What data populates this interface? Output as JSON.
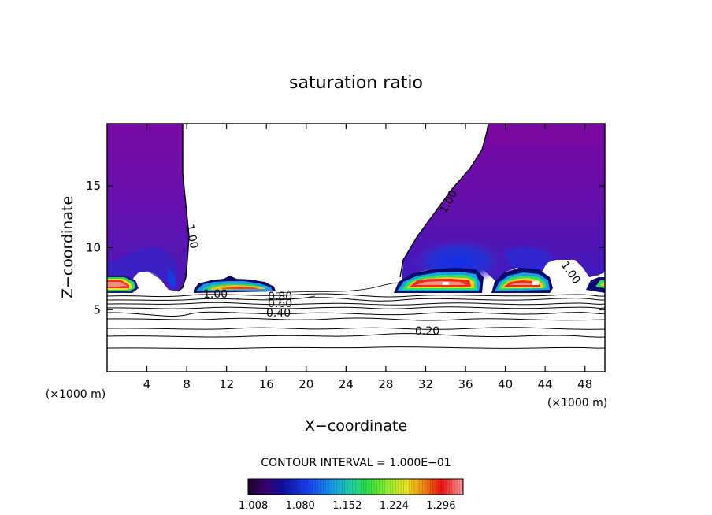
{
  "chart_data": {
    "type": "heatmap",
    "title": "saturation ratio",
    "xlabel": "X−coordinate",
    "ylabel": "Z−coordinate",
    "x_unit_left": "(×1000 m)",
    "x_unit_right": "(×1000 m)",
    "xlim": [
      0,
      50
    ],
    "ylim": [
      0,
      20
    ],
    "xticks": [
      4,
      8,
      12,
      16,
      20,
      24,
      28,
      32,
      36,
      40,
      44,
      48
    ],
    "yticks": [
      5,
      10,
      15
    ],
    "contour_interval_text": "CONTOUR INTERVAL = 1.000E−01",
    "colorbar_ticks": [
      "1.008",
      "1.080",
      "1.152",
      "1.224",
      "1.296"
    ],
    "colorbar_range": [
      1.0,
      1.33
    ],
    "contour_labels": [
      {
        "text": "1.00",
        "x": 7.8,
        "z": 10.7
      },
      {
        "text": "1.00",
        "x": 11.3,
        "z": 6.1
      },
      {
        "text": "1.00",
        "x": 34.4,
        "z": 14.5
      },
      {
        "text": "1.00",
        "x": 46.5,
        "z": 7.9
      },
      {
        "text": "0.80",
        "x": 18.0,
        "z": 6.0
      },
      {
        "text": "0.60",
        "x": 18.0,
        "z": 5.5
      },
      {
        "text": "0.40",
        "x": 17.8,
        "z": 4.7
      },
      {
        "text": "0.20",
        "x": 32.3,
        "z": 3.4
      }
    ],
    "supersaturated_cells": [
      {
        "name": "cell-left-edge",
        "x_range": [
          0,
          3.2
        ],
        "z_range": [
          6.5,
          7.6
        ],
        "peak": 1.3
      },
      {
        "name": "cell-11-17",
        "x_range": [
          8.8,
          17
        ],
        "z_range": [
          6.5,
          7.9
        ],
        "peak": 1.25
      },
      {
        "name": "cell-29-38",
        "x_range": [
          29,
          38.5
        ],
        "z_range": [
          6.3,
          8.6
        ],
        "peak": 1.33
      },
      {
        "name": "cell-39-44",
        "x_range": [
          38.8,
          44.3
        ],
        "z_range": [
          6.3,
          8.2
        ],
        "peak": 1.33
      },
      {
        "name": "cell-right-edge",
        "x_range": [
          49,
          50
        ],
        "z_range": [
          6.4,
          7.2
        ],
        "peak": 1.15
      }
    ]
  }
}
